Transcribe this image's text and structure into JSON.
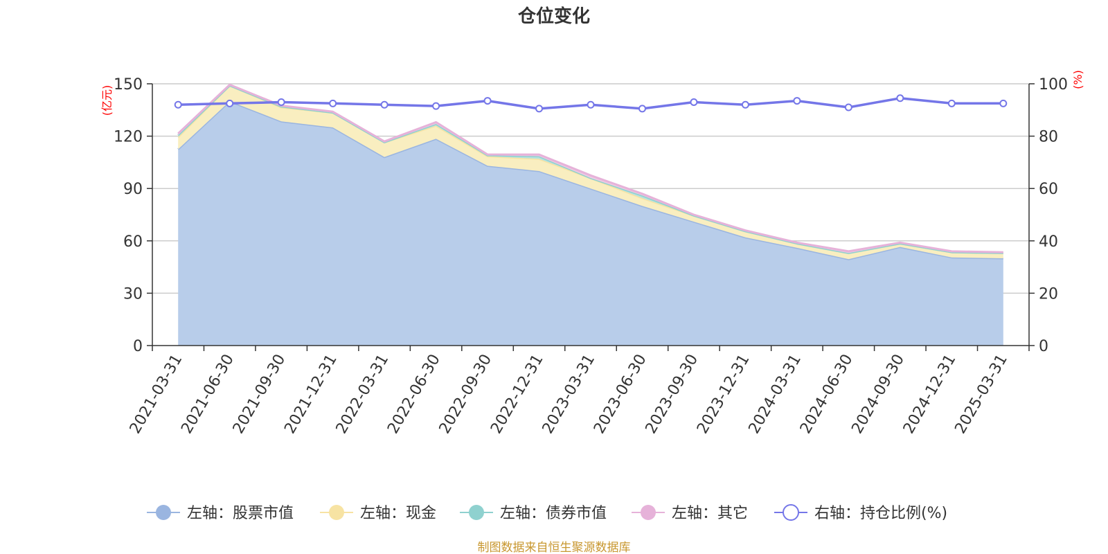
{
  "chart_data": {
    "type": "area",
    "title": "仓位变化",
    "left_axis_unit": "(亿元)",
    "right_axis_unit": "(%)",
    "categories": [
      "2021-03-31",
      "2021-06-30",
      "2021-09-30",
      "2021-12-31",
      "2022-03-31",
      "2022-06-30",
      "2022-09-30",
      "2022-12-31",
      "2023-03-31",
      "2023-06-30",
      "2023-09-30",
      "2023-12-31",
      "2024-03-31",
      "2024-06-30",
      "2024-09-30",
      "2024-12-31",
      "2025-03-31"
    ],
    "left_axis": {
      "ylim": [
        0,
        150
      ],
      "ticks": [
        "0",
        "30",
        "60",
        "90",
        "120",
        "150"
      ]
    },
    "right_axis": {
      "ylim": [
        0,
        100
      ],
      "ticks": [
        "0",
        "20",
        "40",
        "60",
        "80",
        "100"
      ]
    },
    "stacked_series": [
      {
        "name": "左轴：股票市值",
        "color": "#9ab5e0",
        "fill": "#b8cdea",
        "values": [
          112.5,
          140,
          128.5,
          125,
          108,
          118.5,
          103,
          100,
          90,
          80,
          71,
          62,
          56,
          49.5,
          56.5,
          50.5,
          50
        ]
      },
      {
        "name": "左轴：现金",
        "color": "#f7e3a3",
        "fill": "#f9eec0",
        "values": [
          7,
          9,
          8,
          8.5,
          8.5,
          7.5,
          5.5,
          7,
          6,
          4.5,
          3.5,
          3.5,
          2.5,
          3.5,
          2,
          3,
          3
        ]
      },
      {
        "name": "左轴：债券市值",
        "color": "#8fd1cf",
        "fill": "#b7e2e0",
        "values": [
          1,
          0,
          0.5,
          0,
          0,
          1,
          0.5,
          1.5,
          0,
          1.5,
          0,
          0,
          0,
          0,
          0,
          0,
          0
        ]
      },
      {
        "name": "左轴：其它",
        "color": "#e6b2d9",
        "fill": "#eecbe3",
        "values": [
          1,
          0.5,
          0.5,
          0.5,
          0.5,
          1,
          0.5,
          1,
          1.5,
          1,
          0.5,
          0.5,
          0.5,
          1,
          0.5,
          0.5,
          0.5
        ]
      }
    ],
    "line_series": {
      "name": "右轴：持仓比例(%)",
      "color": "#7476e8",
      "values": [
        92,
        92.5,
        93,
        92.5,
        92,
        91.5,
        93.5,
        90.5,
        92,
        90.5,
        93,
        92,
        93.5,
        91,
        94.5,
        92.5,
        92.5
      ]
    },
    "grid": true,
    "legend_position": "bottom"
  },
  "footer": {
    "source": "制图数据来自恒生聚源数据库"
  }
}
